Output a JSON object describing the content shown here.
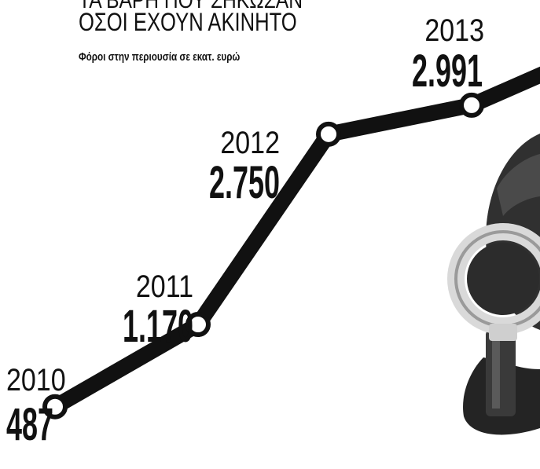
{
  "header": {
    "title_line1": "ΤΑ ΒΑΡΗ ΠΟΥ ΣΗΚΩΣΑΝ",
    "title_line2": "ΟΣΟΙ ΕΧΟΥΝ ΑΚΙΝΗΤΟ",
    "subtitle": "Φόροι στην περιουσία σε εκατ. ευρώ"
  },
  "chart_data": {
    "type": "line",
    "title": "ΤΑ ΒΑΡΗ ΠΟΥ ΣΗΚΩΣΑΝ ΟΣΟΙ ΕΧΟΥΝ ΑΚΙΝΗΤΟ",
    "subtitle": "Φόροι στην περιουσία σε εκατ. ευρώ",
    "x": [
      "2010",
      "2011",
      "2012",
      "2013"
    ],
    "value_labels": [
      "487",
      "1.170",
      "2.750",
      "2.991"
    ],
    "series": [
      {
        "values": [
          487,
          1170,
          2750,
          2991
        ]
      }
    ],
    "line_color": "#111111",
    "marker_fill": "#ffffff"
  },
  "colors": {
    "background": "#ffffff",
    "ink": "#111111",
    "magnifier_dark": "#2a2a2a",
    "magnifier_light": "#d8d8d8"
  },
  "icons": {
    "decoration": "magnifying-glass-icon"
  }
}
